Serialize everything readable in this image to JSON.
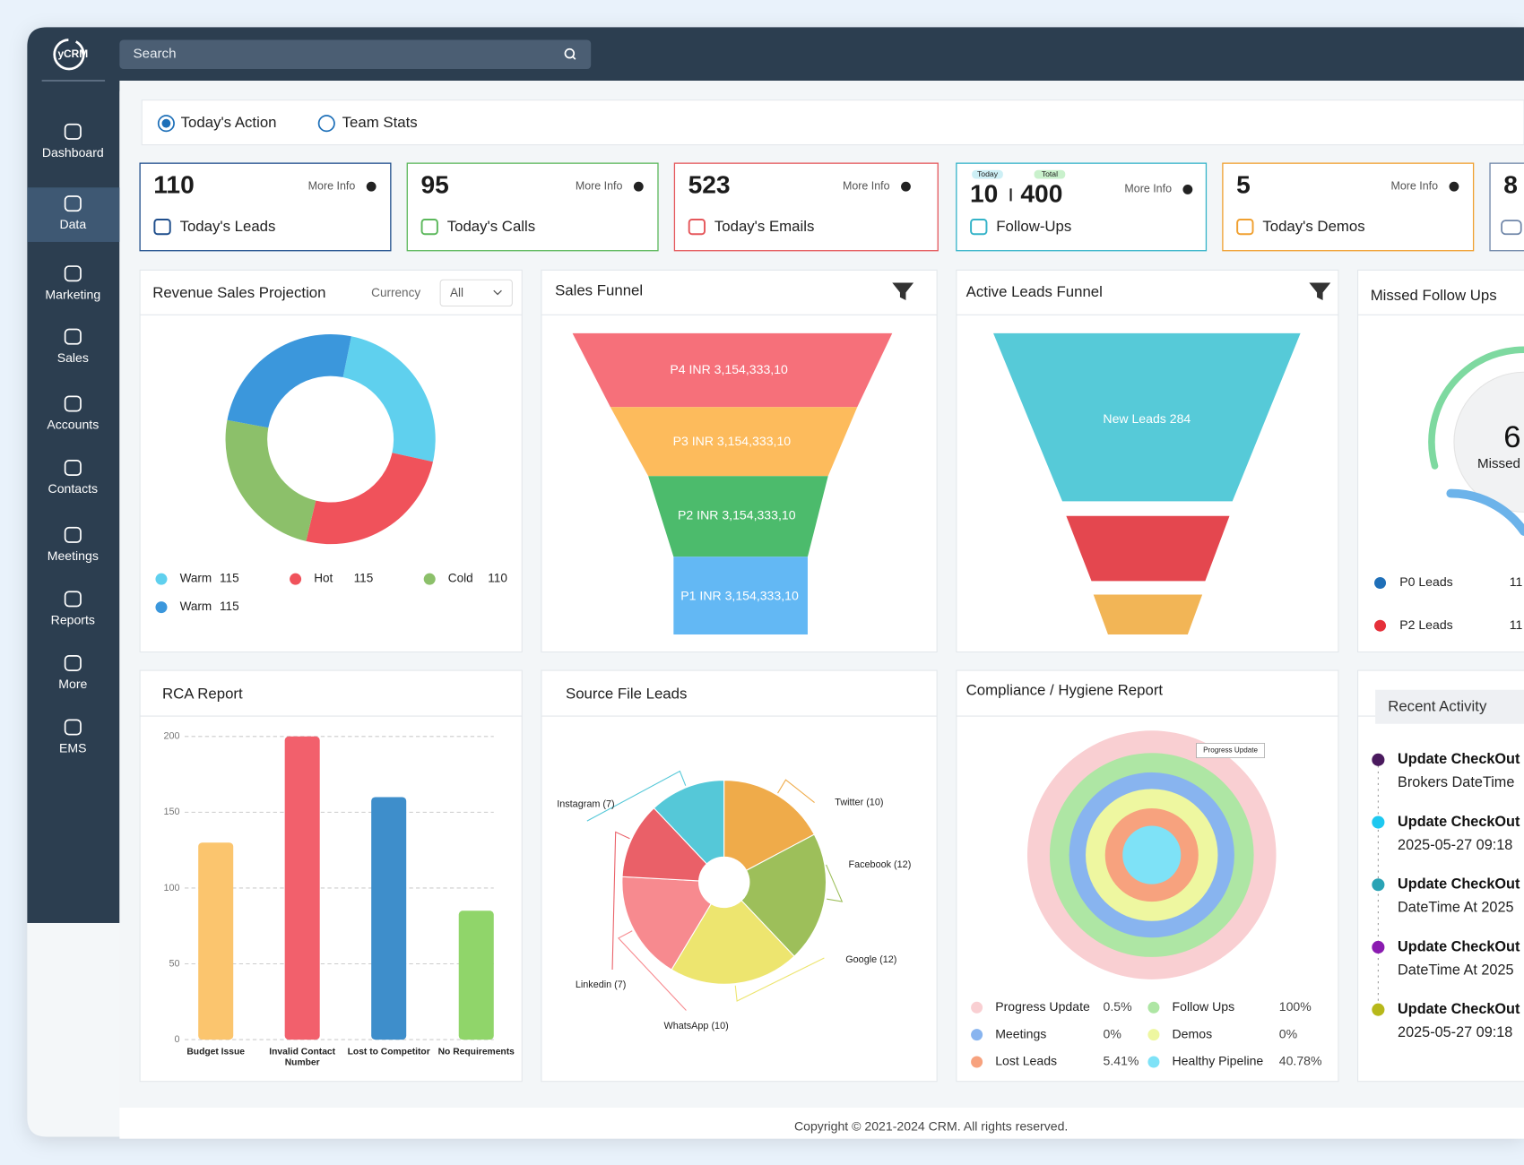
{
  "sidebar": {
    "logo": "yCRM",
    "menu": [
      "Dashboard",
      "Data",
      "Marketing",
      "Sales",
      "Accounts",
      "Contacts",
      "Meetings",
      "Reports",
      "More",
      "EMS"
    ]
  },
  "search": "Search",
  "tabs": [
    "Today's Action",
    "Team Stats"
  ],
  "cards": [
    {
      "value": "110",
      "label": "Today's Leads",
      "link": "More Info"
    },
    {
      "value": "95",
      "label": "Today's Calls",
      "link": "More Info"
    },
    {
      "value": "523",
      "label": "Today's Emails",
      "link": "More Info"
    },
    {
      "today_badge": "Today",
      "today": "10",
      "total_badge": "Total",
      "total": "400",
      "label": "Follow-Ups",
      "link": "More Info"
    },
    {
      "value": "5",
      "label": "Today's Demos",
      "link": "More Info"
    },
    {
      "value": "8"
    }
  ],
  "revenue": {
    "title": "Revenue Sales Projection",
    "currency_label": "Currency",
    "currency_value": "All",
    "chart_data": {
      "type": "donut",
      "categories": [
        "Warm",
        "Hot",
        "Cold",
        "Warm"
      ],
      "values": [
        115,
        115,
        110,
        115
      ],
      "colors": [
        "#5fd0ee",
        "#f0525b",
        "#8cc06a",
        "#3b97dc"
      ]
    }
  },
  "sales_funnel": {
    "title": "Sales Funnel",
    "stages": [
      "P4 INR 3,154,333,10",
      "P3 INR 3,154,333,10",
      "P2 INR 3,154,333,10",
      "P1 INR 3,154,333,10"
    ]
  },
  "active_funnel": {
    "title": "Active Leads Funnel",
    "stages": [
      "New Leads 284"
    ]
  },
  "missed": {
    "title": "Missed Follow Ups",
    "count": "6",
    "caption": "Missed",
    "legend": [
      {
        "label": "P0 Leads",
        "value": "11",
        "color": "#1f6fb8"
      },
      {
        "label": "P2 Leads",
        "value": "11",
        "color": "#e5303a"
      }
    ]
  },
  "rca": {
    "title": "RCA Report",
    "chart_data": {
      "type": "bar",
      "categories": [
        "Budget Issue",
        "Invalid Contact Number",
        "Lost to Competitor",
        "No Requirements"
      ],
      "values": [
        130,
        200,
        160,
        85
      ],
      "colors": [
        "#fbc56e",
        "#f2606c",
        "#3e8ecb",
        "#90d56a"
      ],
      "ylim": [
        0,
        200
      ],
      "yticks": [
        0,
        50,
        100,
        150,
        200
      ],
      "grid": true
    }
  },
  "source": {
    "title": "Source File Leads",
    "chart_data": {
      "type": "pie",
      "categories": [
        "Instagram (7)",
        "Twitter (10)",
        "Facebook (12)",
        "Google (12)",
        "WhatsApp (10)",
        "Linkedin (7)"
      ],
      "values": [
        7,
        10,
        12,
        12,
        10,
        7
      ],
      "colors": [
        "#55c8d8",
        "#efab4a",
        "#9dbf5a",
        "#ede56f",
        "#f78a8f",
        "#ea6068"
      ]
    }
  },
  "compliance": {
    "title": "Compliance / Hygiene Report",
    "tooltip": "Progress Update",
    "legend": [
      {
        "label": "Progress Update",
        "value": "0.5%",
        "color": "#f9cfd2"
      },
      {
        "label": "Follow Ups",
        "value": "100%",
        "color": "#aee6a4"
      },
      {
        "label": "Meetings",
        "value": "0%",
        "color": "#88b4ef"
      },
      {
        "label": "Demos",
        "value": "0%",
        "color": "#eef7a0"
      },
      {
        "label": "Lost Leads",
        "value": "5.41%",
        "color": "#f7a27e"
      },
      {
        "label": "Healthy Pipeline",
        "value": "40.78%",
        "color": "#7ee2f7"
      }
    ]
  },
  "activity": {
    "title": "Recent Activity",
    "items": [
      {
        "title": "Update CheckOut",
        "detail": "Brokers DateTime",
        "color": "#4a1a5e"
      },
      {
        "title": "Update CheckOut",
        "detail": "2025-05-27 09:18",
        "color": "#1ec8f0"
      },
      {
        "title": "Update CheckOut",
        "detail": "DateTime At 2025",
        "color": "#2aa3b5"
      },
      {
        "title": "Update CheckOut",
        "detail": "DateTime At 2025",
        "color": "#8a1bb0"
      },
      {
        "title": "Update CheckOut",
        "detail": "2025-05-27 09:18",
        "color": "#b7b81a"
      }
    ]
  },
  "footer": "Copyright © 2021-2024 CRM. All rights reserved."
}
